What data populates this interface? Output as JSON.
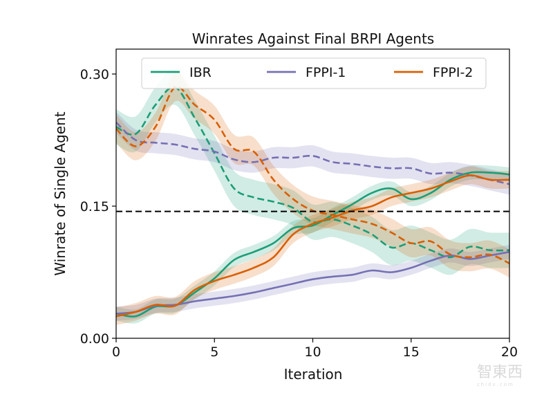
{
  "chart_data": {
    "type": "line",
    "title": "Winrates Against Final BRPI Agents",
    "xlabel": "Iteration",
    "ylabel": "Winrate of Single Agent",
    "xlim": [
      0,
      20
    ],
    "ylim": [
      0.0,
      0.32
    ],
    "xticks": [
      0,
      5,
      10,
      15,
      20
    ],
    "xtick_labels": [
      "0",
      "5",
      "10",
      "15",
      "20"
    ],
    "yticks": [
      0.0,
      0.15,
      0.3
    ],
    "ytick_labels": [
      "0.00",
      "0.15",
      "0.30"
    ],
    "grid": false,
    "legend": {
      "placement": "top",
      "entries": [
        {
          "label": "IBR",
          "color": "#1b9e77"
        },
        {
          "label": "FPPI-1",
          "color": "#7570b3"
        },
        {
          "label": "FPPI-2",
          "color": "#d95f02"
        }
      ]
    },
    "reference_line": {
      "y": 0.144,
      "style": "dashed",
      "color": "#000000"
    },
    "x": [
      0,
      1,
      2,
      3,
      4,
      5,
      6,
      7,
      8,
      9,
      10,
      11,
      12,
      13,
      14,
      15,
      16,
      17,
      18,
      19,
      20
    ],
    "series": [
      {
        "name": "IBR",
        "variant": "solid",
        "color": "#1b9e77",
        "values": [
          0.028,
          0.025,
          0.036,
          0.037,
          0.052,
          0.068,
          0.089,
          0.098,
          0.108,
          0.125,
          0.128,
          0.14,
          0.152,
          0.165,
          0.17,
          0.158,
          0.165,
          0.18,
          0.188,
          0.188,
          0.186
        ],
        "band": 0.008
      },
      {
        "name": "IBR",
        "variant": "dashed",
        "color": "#1b9e77",
        "values": [
          0.24,
          0.232,
          0.265,
          0.285,
          0.25,
          0.21,
          0.17,
          0.16,
          0.155,
          0.148,
          0.132,
          0.135,
          0.128,
          0.118,
          0.103,
          0.108,
          0.1,
          0.092,
          0.104,
          0.1,
          0.1
        ],
        "band": 0.02
      },
      {
        "name": "FPPI-1",
        "variant": "solid",
        "color": "#7570b3",
        "values": [
          0.028,
          0.03,
          0.037,
          0.038,
          0.042,
          0.045,
          0.048,
          0.052,
          0.057,
          0.062,
          0.067,
          0.07,
          0.072,
          0.077,
          0.075,
          0.08,
          0.088,
          0.094,
          0.09,
          0.094,
          0.098
        ],
        "band": 0.008
      },
      {
        "name": "FPPI-1",
        "variant": "dashed",
        "color": "#7570b3",
        "values": [
          0.245,
          0.225,
          0.222,
          0.22,
          0.215,
          0.212,
          0.203,
          0.2,
          0.205,
          0.205,
          0.207,
          0.2,
          0.198,
          0.195,
          0.193,
          0.193,
          0.187,
          0.188,
          0.185,
          0.18,
          0.175
        ],
        "band": 0.012
      },
      {
        "name": "FPPI-2",
        "variant": "solid",
        "color": "#d95f02",
        "values": [
          0.025,
          0.03,
          0.038,
          0.037,
          0.055,
          0.065,
          0.072,
          0.08,
          0.092,
          0.118,
          0.13,
          0.137,
          0.145,
          0.15,
          0.16,
          0.165,
          0.17,
          0.178,
          0.185,
          0.18,
          0.18
        ],
        "band": 0.01
      },
      {
        "name": "FPPI-2",
        "variant": "dashed",
        "color": "#d95f02",
        "values": [
          0.238,
          0.218,
          0.24,
          0.285,
          0.265,
          0.248,
          0.215,
          0.212,
          0.18,
          0.158,
          0.145,
          0.14,
          0.135,
          0.13,
          0.12,
          0.108,
          0.11,
          0.095,
          0.092,
          0.095,
          0.085
        ],
        "band": 0.016
      }
    ]
  },
  "watermark": {
    "text": "智東西",
    "subtext": "zhidx.com"
  }
}
